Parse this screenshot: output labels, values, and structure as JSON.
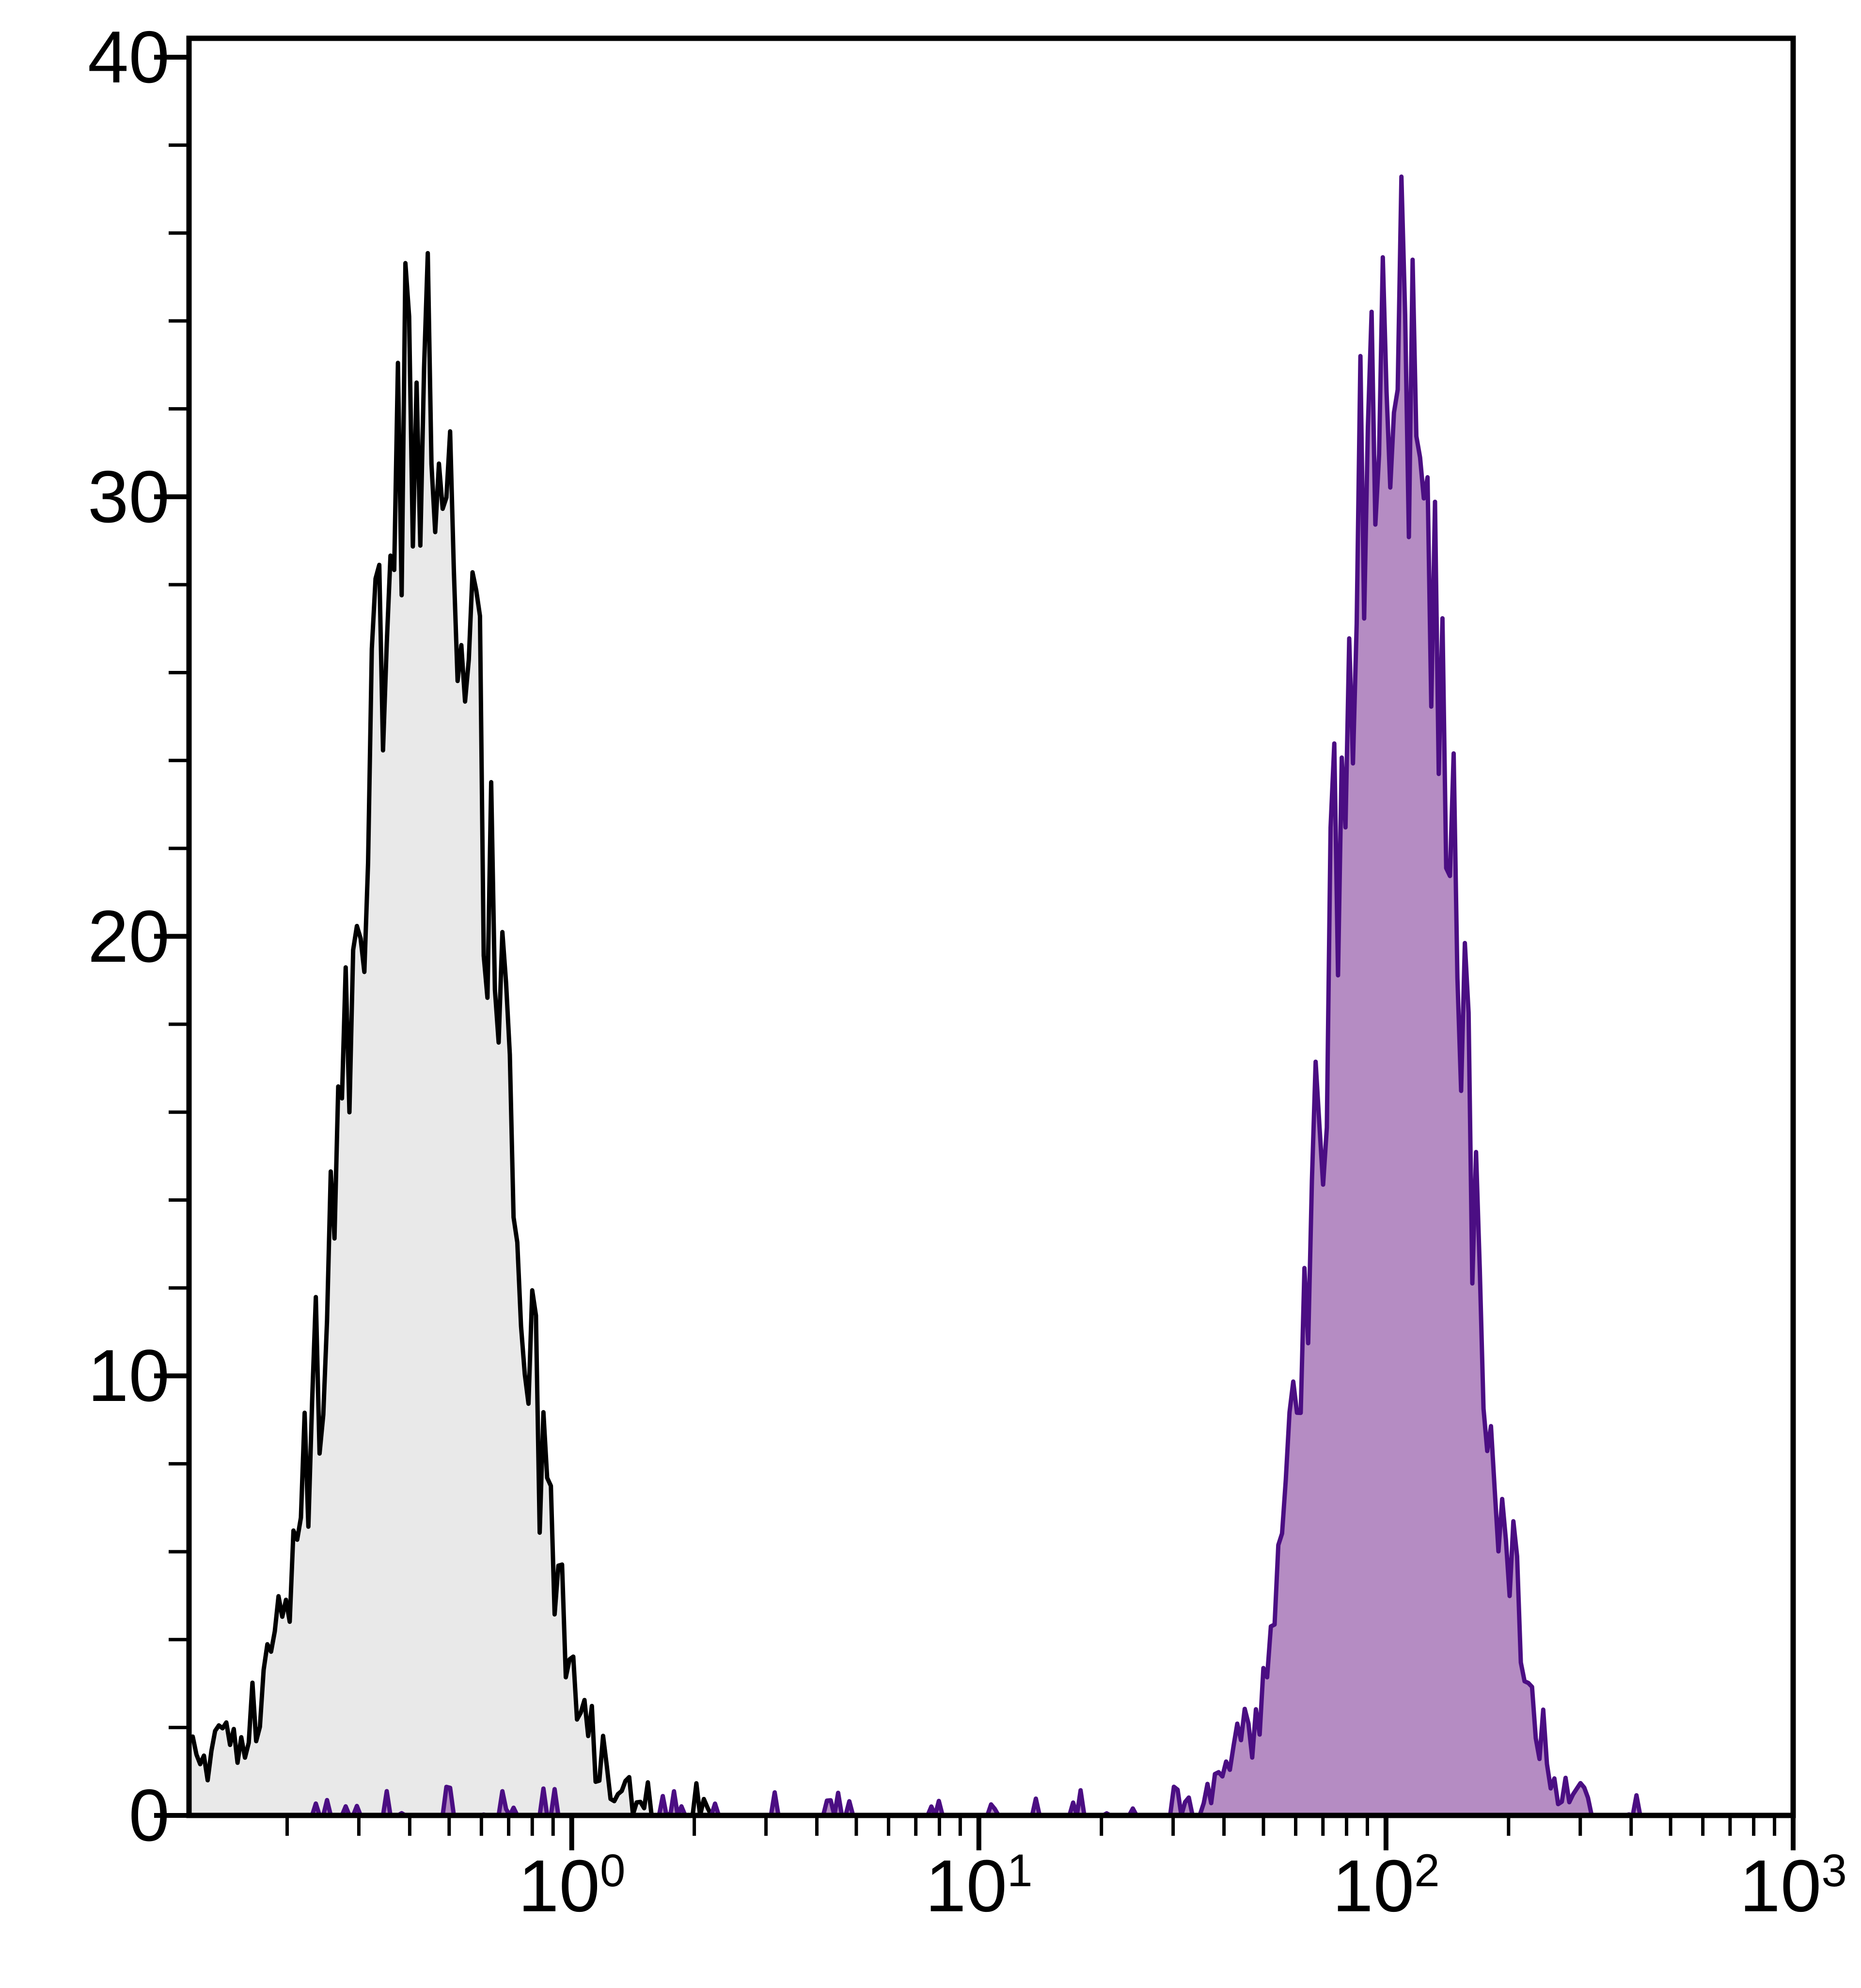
{
  "figure": {
    "background": "#ffffff"
  },
  "chart_data": {
    "type": "area",
    "subtype": "flow-cytometry-histogram-overlay",
    "title": "",
    "xlabel": "",
    "ylabel": "",
    "grid": false,
    "frame": true,
    "axis_color": "#000000",
    "x_scale": "log10",
    "x_log_range": [
      -0.94,
      3
    ],
    "ylim": [
      0,
      40
    ],
    "y_major_ticks": [
      0,
      10,
      20,
      30,
      40
    ],
    "y_minor_step": 2,
    "x_major_ticks": [
      {
        "value": 1,
        "base": "10",
        "exp": "0"
      },
      {
        "value": 10,
        "base": "10",
        "exp": "1"
      },
      {
        "value": 100,
        "base": "10",
        "exp": "2"
      },
      {
        "value": 1000,
        "base": "10",
        "exp": "3"
      }
    ],
    "bins": 430,
    "series": [
      {
        "name": "left-peak",
        "line_color": "#000000",
        "fill_color": "#e9e9e9",
        "fill_opacity": 1,
        "peak": {
          "log10_center": -0.36,
          "log10_sigma": 0.17,
          "height": 33
        },
        "edge_bump": {
          "log10_center": -0.93,
          "log10_sigma": 0.11,
          "height": 1.3
        },
        "baseline_spikes": {
          "log10_from": -0.96,
          "log10_to": 0.35,
          "prob": 0.22,
          "max_height": 0.8
        },
        "jitter": 0.75,
        "draw_log10_range": [
          -0.94,
          0.46
        ],
        "peak_mode_x": 0.44,
        "peak_max_y": 37
      },
      {
        "name": "right-peak",
        "line_color": "#4b0e83",
        "fill_color": "#ad7fbc",
        "fill_opacity": 0.9,
        "peak": {
          "log10_center": 2.02,
          "log10_sigma": 0.15,
          "height": 34
        },
        "baseline_spikes": {
          "log10_from": -0.65,
          "log10_to": 2.72,
          "prob": 0.16,
          "max_height": 0.7
        },
        "jitter": 0.75,
        "draw_log10_range": [
          -0.7,
          2.78
        ],
        "peak_mode_x": 105,
        "peak_max_y": 38.5
      }
    ]
  }
}
